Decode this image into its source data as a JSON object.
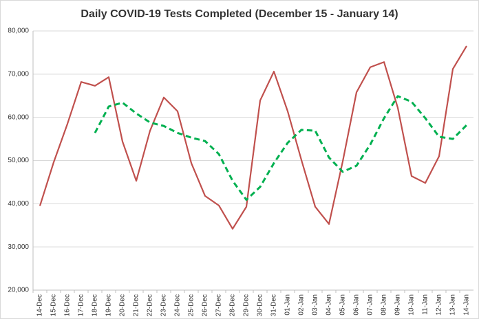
{
  "chart_data": {
    "type": "line",
    "title": "Daily COVID-19 Tests Completed (December 15 - January 14)",
    "categories": [
      "14-Dec",
      "15-Dec",
      "16-Dec",
      "17-Dec",
      "18-Dec",
      "19-Dec",
      "20-Dec",
      "21-Dec",
      "22-Dec",
      "23-Dec",
      "24-Dec",
      "25-Dec",
      "26-Dec",
      "27-Dec",
      "28-Dec",
      "29-Dec",
      "30-Dec",
      "31-Dec",
      "01-Jan",
      "02-Jan",
      "03-Jan",
      "04-Jan",
      "05-Jan",
      "06-Jan",
      "07-Jan",
      "08-Jan",
      "09-Jan",
      "10-Jan",
      "11-Jan",
      "12-Jan",
      "13-Jan",
      "14-Jan"
    ],
    "series": [
      {
        "color": "#c0504d",
        "dashed": false,
        "values": [
          39500,
          49600,
          58500,
          68200,
          67300,
          69300,
          54400,
          45300,
          56900,
          64600,
          61400,
          49400,
          41800,
          39600,
          34200,
          39300,
          63900,
          70600,
          61400,
          50100,
          39300,
          35300,
          49800,
          65800,
          71600,
          72800,
          62200,
          46400,
          44800,
          51000,
          71200,
          76500
        ]
      },
      {
        "color": "#00b050",
        "dashed": true,
        "values": [
          null,
          null,
          null,
          null,
          56400,
          62500,
          63400,
          60900,
          58800,
          58000,
          56400,
          55300,
          54500,
          51500,
          45300,
          40900,
          43900,
          49400,
          54100,
          57100,
          56900,
          50700,
          47400,
          48800,
          53700,
          59800,
          64900,
          63600,
          59800,
          55500,
          55000,
          58200
        ]
      }
    ],
    "ylim": [
      20000,
      80000
    ],
    "yticks": [
      {
        "value": 20000,
        "label": "20,000"
      },
      {
        "value": 30000,
        "label": "30,000"
      },
      {
        "value": 40000,
        "label": "40,000"
      },
      {
        "value": 50000,
        "label": "50,000"
      },
      {
        "value": 60000,
        "label": "60,000"
      },
      {
        "value": 70000,
        "label": "70,000"
      },
      {
        "value": 80000,
        "label": "80,000"
      }
    ],
    "grid": true
  }
}
